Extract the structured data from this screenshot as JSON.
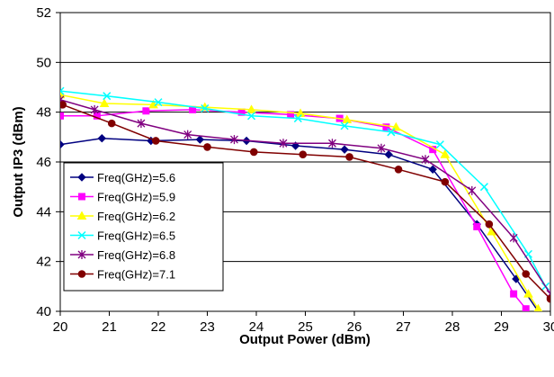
{
  "chart_data": {
    "type": "line",
    "title": "",
    "xlabel": "Output Power (dBm)",
    "ylabel": "Output IP3 (dBm)",
    "xlim": [
      20,
      30
    ],
    "ylim": [
      40,
      52
    ],
    "xticks": [
      20,
      21,
      22,
      23,
      24,
      25,
      26,
      27,
      28,
      29,
      30
    ],
    "yticks": [
      40,
      42,
      44,
      46,
      48,
      50,
      52
    ],
    "grid": "horizontal",
    "legend_position": "bottom-left",
    "series": [
      {
        "name": "Freq(GHz)=5.6",
        "color": "#000080",
        "marker": "diamond",
        "x": [
          20,
          20.85,
          21.85,
          22.85,
          23.8,
          24.8,
          25.8,
          26.7,
          27.6,
          28.5,
          29.3,
          29.75
        ],
        "y": [
          46.7,
          46.95,
          46.85,
          46.9,
          46.85,
          46.65,
          46.5,
          46.3,
          45.7,
          43.5,
          41.3,
          40
        ]
      },
      {
        "name": "Freq(GHz)=5.9",
        "color": "#FF00FF",
        "marker": "square",
        "x": [
          20,
          20.75,
          21.75,
          22.7,
          23.7,
          24.7,
          25.7,
          26.65,
          27.6,
          28.5,
          29.25,
          29.5
        ],
        "y": [
          47.85,
          47.85,
          48.05,
          48.1,
          48.0,
          47.9,
          47.75,
          47.4,
          46.5,
          43.4,
          40.7,
          40.1
        ]
      },
      {
        "name": "Freq(GHz)=6.2",
        "color": "#FFFF00",
        "marker": "triangle",
        "x": [
          20,
          20.9,
          21.9,
          22.95,
          23.9,
          24.9,
          25.85,
          26.85,
          27.85,
          28.8,
          29.55,
          29.75
        ],
        "y": [
          48.7,
          48.35,
          48.3,
          48.2,
          48.1,
          47.95,
          47.7,
          47.4,
          46.3,
          43.2,
          40.7,
          40.1
        ]
      },
      {
        "name": "Freq(GHz)=6.5",
        "color": "#00FFFF",
        "marker": "cross",
        "x": [
          20,
          20.95,
          22.0,
          22.95,
          23.9,
          24.85,
          25.8,
          26.75,
          27.75,
          28.65,
          29.55,
          29.9
        ],
        "y": [
          48.85,
          48.65,
          48.4,
          48.15,
          47.85,
          47.75,
          47.45,
          47.2,
          46.7,
          45.0,
          42.3,
          41.0
        ]
      },
      {
        "name": "Freq(GHz)=6.8",
        "color": "#800080",
        "marker": "asterisk",
        "x": [
          20,
          20.7,
          21.65,
          22.6,
          23.55,
          24.55,
          25.55,
          26.55,
          27.45,
          28.4,
          29.25,
          30
        ],
        "y": [
          48.5,
          48.1,
          47.55,
          47.1,
          46.9,
          46.75,
          46.75,
          46.55,
          46.1,
          44.85,
          42.95,
          40.7
        ]
      },
      {
        "name": "Freq(GHz)=7.1",
        "color": "#800000",
        "marker": "circle",
        "x": [
          20.05,
          21.05,
          21.95,
          23.0,
          23.95,
          24.95,
          25.9,
          26.9,
          27.85,
          28.75,
          29.5,
          30
        ],
        "y": [
          48.3,
          47.55,
          46.85,
          46.6,
          46.4,
          46.3,
          46.2,
          45.7,
          45.2,
          43.5,
          41.5,
          40.5
        ]
      }
    ]
  }
}
